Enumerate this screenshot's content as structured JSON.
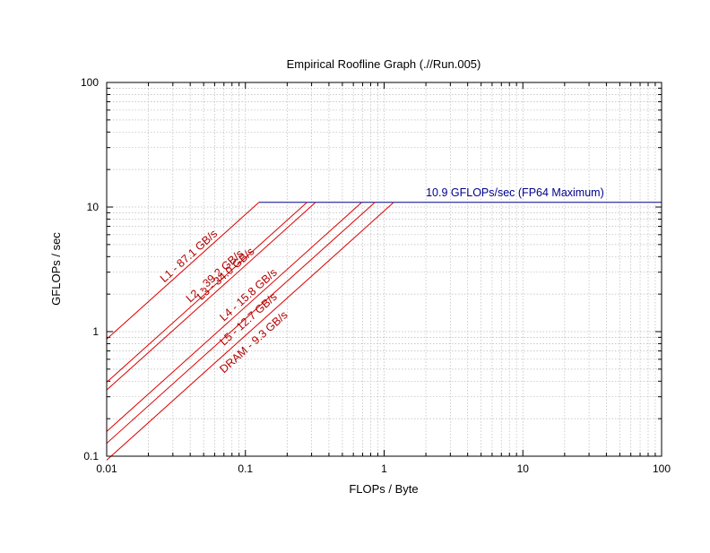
{
  "chart_data": {
    "type": "line",
    "title": "Empirical Roofline Graph (.//Run.005)",
    "xlabel": "FLOPs / Byte",
    "ylabel": "GFLOPs / sec",
    "xscale": "log",
    "yscale": "log",
    "xlim": [
      0.01,
      100
    ],
    "ylim": [
      0.1,
      100
    ],
    "x_ticks": [
      "0.01",
      "0.1",
      "1",
      "10",
      "100"
    ],
    "y_ticks": [
      "0.1",
      "1",
      "10",
      "100"
    ],
    "grid": true,
    "peak": {
      "label": "10.9 GFLOPs/sec (FP64 Maximum)",
      "gflops": 10.9,
      "color": "#00008b"
    },
    "bandwidth_color": "#dd0000",
    "label_color": "#b00000",
    "series": [
      {
        "name": "L1 - 87.1 GB/s",
        "gbps": 87.1
      },
      {
        "name": "L2 - 39.2 GB/s",
        "gbps": 39.2
      },
      {
        "name": "L3 - 34.0 GB/s",
        "gbps": 34.0
      },
      {
        "name": "L4 - 15.8 GB/s",
        "gbps": 15.8
      },
      {
        "name": "L5 - 12.7 GB/s",
        "gbps": 12.7
      },
      {
        "name": "DRAM - 9.3 GB/s",
        "gbps": 9.3
      }
    ]
  }
}
